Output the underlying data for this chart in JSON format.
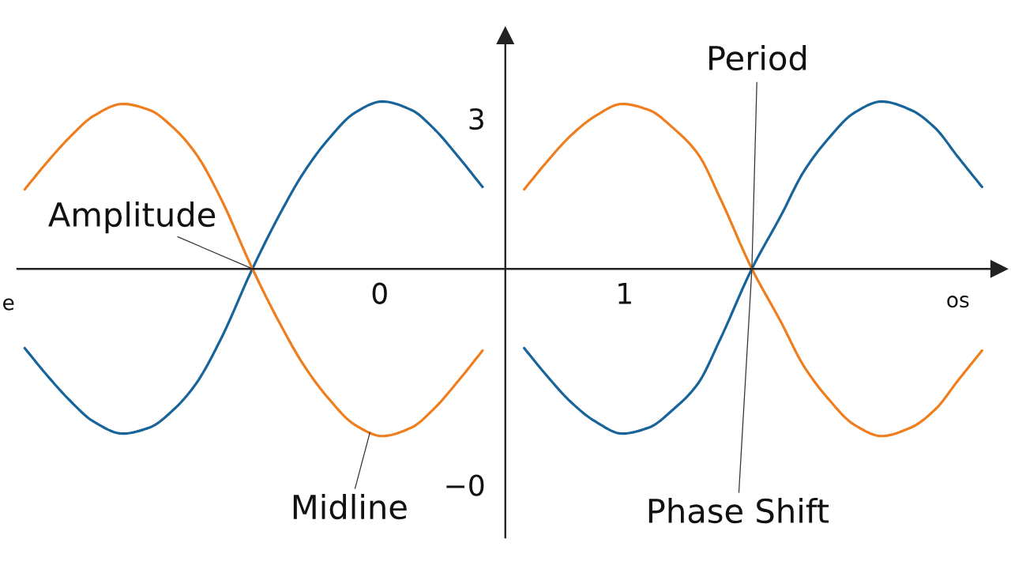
{
  "chart_data": {
    "type": "line",
    "x": [
      -1.45,
      -1.36,
      -1.26,
      -1.17,
      -1.05,
      -0.94,
      -0.84,
      -0.75,
      -0.65,
      -0.52,
      -0.41,
      -0.31,
      -0.21,
      -0.1,
      0.01,
      0.13,
      0.22,
      0.32,
      0.42,
      0.5,
      0.59,
      0.68,
      0.78,
      0.88,
      0.99,
      1.1,
      1.2,
      1.3,
      1.39,
      1.52,
      1.64,
      1.73,
      1.83,
      1.94,
      2.05,
      2.17,
      2.27,
      2.36,
      2.46
    ],
    "series": [
      {
        "color": "#17649b",
        "values": [
          1.12,
          0.9,
          0.68,
          0.52,
          0.42,
          0.47,
          0.62,
          0.83,
          1.19,
          1.77,
          2.21,
          2.56,
          2.83,
          3.05,
          3.14,
          3.07,
          2.92,
          2.69,
          2.44,
          null,
          1.12,
          0.9,
          0.68,
          0.52,
          0.42,
          0.47,
          0.62,
          0.83,
          1.19,
          1.77,
          2.21,
          2.56,
          2.83,
          3.05,
          3.14,
          3.07,
          2.92,
          2.69,
          2.44
        ]
      },
      {
        "color": "#ee7e1e",
        "values": [
          2.42,
          2.64,
          2.86,
          3.02,
          3.12,
          3.07,
          2.92,
          2.71,
          2.35,
          1.77,
          1.33,
          0.98,
          0.71,
          0.49,
          0.4,
          0.47,
          0.62,
          0.85,
          1.1,
          null,
          2.42,
          2.64,
          2.86,
          3.02,
          3.12,
          3.07,
          2.92,
          2.71,
          2.35,
          1.77,
          1.33,
          0.98,
          0.71,
          0.49,
          0.4,
          0.47,
          0.62,
          0.85,
          1.1
        ]
      }
    ],
    "xlim": [
      -1.48,
      2.53
    ],
    "ylim": [
      -0.43,
      3.68
    ],
    "xticks": [
      0,
      1
    ],
    "yticks": [
      {
        "value": 0,
        "label": "−0"
      },
      3
    ],
    "xlabel": "os",
    "annotations": [
      {
        "text": "Amplitude",
        "x": -0.52,
        "y": 1.77
      },
      {
        "text": "Period",
        "x": 1.52,
        "y": 1.77
      },
      {
        "text": "Phase Shift",
        "x": 1.52,
        "y": 1.77
      },
      {
        "text": "Midline",
        "x": -0.04,
        "y": 0.43
      },
      "e"
    ]
  }
}
